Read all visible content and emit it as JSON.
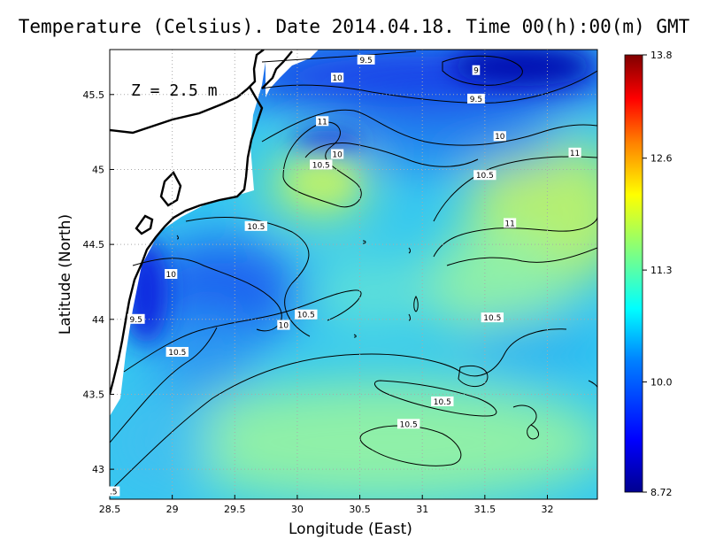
{
  "title": "Temperature (Celsius). Date 2014.04.18. Time 00(h):00(m)  GMT",
  "annotation": "Z = 2.5 m",
  "chart_data": {
    "type": "heatmap",
    "title": "Temperature (Celsius). Date 2014.04.18. Time 00(h):00(m)  GMT",
    "xlabel": "Longitude (East)",
    "ylabel": "Latitude (North)",
    "xlim": [
      28.5,
      32.4
    ],
    "ylim": [
      42.8,
      45.8
    ],
    "x_ticks": [
      "28.5",
      "29",
      "29.5",
      "30",
      "30.5",
      "31",
      "31.5",
      "32"
    ],
    "y_ticks": [
      "43",
      "43.5",
      "44",
      "44.5",
      "45",
      "45.5"
    ],
    "colorbar": {
      "min": 8.72,
      "max": 13.8,
      "tick_labels": [
        "8.72",
        "10.0",
        "11.3",
        "12.6",
        "13.8"
      ],
      "colors": [
        "#00008f",
        "#0000ff",
        "#0080ff",
        "#00ffff",
        "#80ff80",
        "#ffff00",
        "#ff8000",
        "#ff0000",
        "#800000"
      ]
    },
    "contour_labels": [
      {
        "text": "9.5",
        "lon": 30.55,
        "lat": 45.73
      },
      {
        "text": "9",
        "lon": 31.43,
        "lat": 45.66
      },
      {
        "text": "10",
        "lon": 30.32,
        "lat": 45.61
      },
      {
        "text": "9.5",
        "lon": 31.43,
        "lat": 45.47
      },
      {
        "text": "11",
        "lon": 30.2,
        "lat": 45.32
      },
      {
        "text": "10",
        "lon": 31.62,
        "lat": 45.22
      },
      {
        "text": "11",
        "lon": 32.22,
        "lat": 45.11
      },
      {
        "text": "10",
        "lon": 30.32,
        "lat": 45.1
      },
      {
        "text": "10.5",
        "lon": 30.19,
        "lat": 45.03
      },
      {
        "text": "10.5",
        "lon": 31.5,
        "lat": 44.96
      },
      {
        "text": "11",
        "lon": 31.7,
        "lat": 44.64
      },
      {
        "text": "10.5",
        "lon": 29.67,
        "lat": 44.62
      },
      {
        "text": "10",
        "lon": 28.99,
        "lat": 44.3
      },
      {
        "text": "10.5",
        "lon": 30.07,
        "lat": 44.03
      },
      {
        "text": "10.5",
        "lon": 31.56,
        "lat": 44.01
      },
      {
        "text": "10",
        "lon": 29.89,
        "lat": 43.96
      },
      {
        "text": "9.5",
        "lon": 28.71,
        "lat": 44.0
      },
      {
        "text": "10.5",
        "lon": 29.04,
        "lat": 43.78
      },
      {
        "text": "10.5",
        "lon": 31.16,
        "lat": 43.45
      },
      {
        "text": "10.5",
        "lon": 30.89,
        "lat": 43.3
      },
      {
        "text": ".5",
        "lon": 28.53,
        "lat": 42.85
      }
    ]
  }
}
